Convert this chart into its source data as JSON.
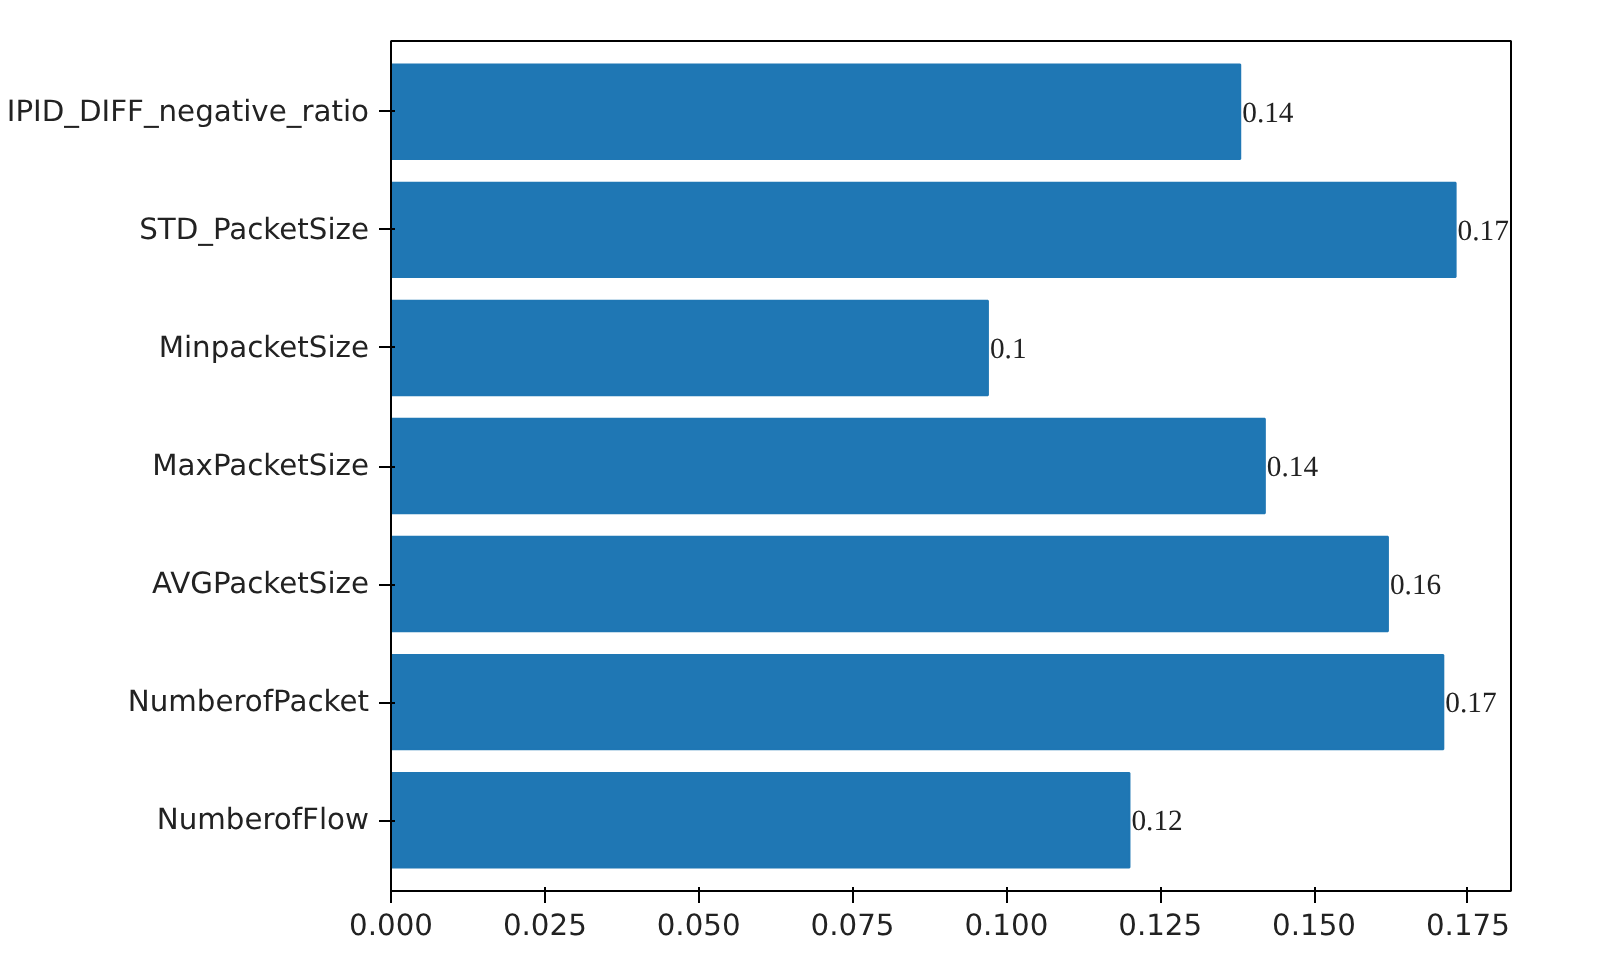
{
  "chart_data": {
    "type": "bar",
    "orientation": "horizontal",
    "categories": [
      "IPID_DIFF_negative_ratio",
      "STD_PacketSize",
      "MinpacketSize",
      "MaxPacketSize",
      "AVGPacketSize",
      "NumberofPacket",
      "NumberofFlow"
    ],
    "values": [
      0.138,
      0.173,
      0.097,
      0.142,
      0.162,
      0.171,
      0.12
    ],
    "value_labels": [
      "0.14",
      "0.17",
      "0.1",
      "0.14",
      "0.16",
      "0.17",
      "0.12"
    ],
    "color": "#1f77b4",
    "xlim": [
      0,
      0.182
    ],
    "xticks": [
      {
        "value": 0,
        "label": "0.000"
      },
      {
        "value": 0.025,
        "label": "0.025"
      },
      {
        "value": 0.05,
        "label": "0.050"
      },
      {
        "value": 0.075,
        "label": "0.075"
      },
      {
        "value": 0.1,
        "label": "0.100"
      },
      {
        "value": 0.125,
        "label": "0.125"
      },
      {
        "value": 0.15,
        "label": "0.150"
      },
      {
        "value": 0.175,
        "label": "0.175"
      }
    ],
    "grid": false
  }
}
